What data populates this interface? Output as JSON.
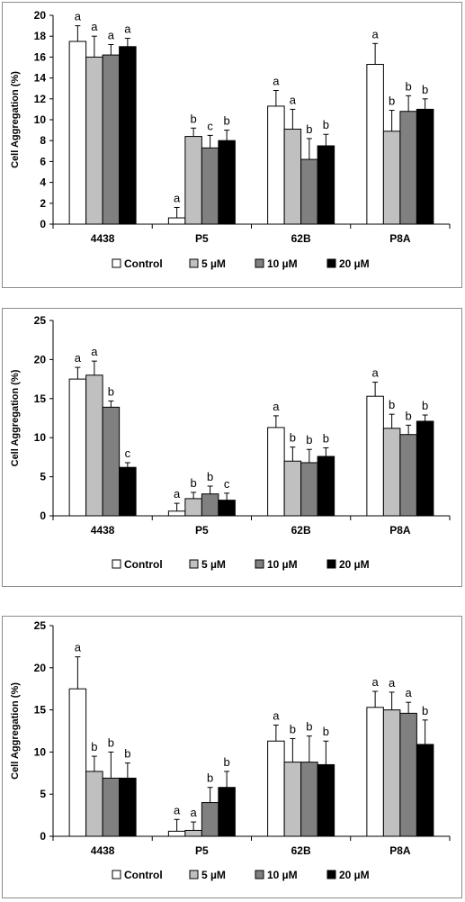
{
  "chart_data": [
    {
      "type": "bar",
      "categories": [
        "4438",
        "P5",
        "62B",
        "P8A"
      ],
      "ylabel": "Cell Aggregation (%)",
      "ylim": [
        0,
        20
      ],
      "yticks": [
        0,
        2,
        4,
        6,
        8,
        10,
        12,
        14,
        16,
        18,
        20
      ],
      "legend_position": "bottom",
      "series": [
        {
          "name": "Control",
          "color": "#ffffff",
          "values": [
            17.5,
            0.6,
            11.3,
            15.3
          ],
          "errors": [
            1.5,
            1.0,
            1.5,
            2.0
          ],
          "letters": [
            "a",
            "a",
            "a",
            "a"
          ]
        },
        {
          "name": "5 µM",
          "color": "#c0c0c0",
          "values": [
            16.0,
            8.4,
            9.1,
            8.9
          ],
          "errors": [
            2.0,
            0.8,
            1.9,
            2.0
          ],
          "letters": [
            "a",
            "b",
            "a",
            "b"
          ]
        },
        {
          "name": "10 µM",
          "color": "#808080",
          "values": [
            16.2,
            7.3,
            6.2,
            10.8
          ],
          "errors": [
            1.0,
            1.2,
            2.0,
            1.5
          ],
          "letters": [
            "a",
            "c",
            "b",
            "b"
          ]
        },
        {
          "name": "20 µM",
          "color": "#000000",
          "values": [
            17.0,
            8.0,
            7.5,
            11.0
          ],
          "errors": [
            0.8,
            1.0,
            1.1,
            1.0
          ],
          "letters": [
            "a",
            "b",
            "b",
            "b"
          ]
        }
      ]
    },
    {
      "type": "bar",
      "categories": [
        "4438",
        "P5",
        "62B",
        "P8A"
      ],
      "ylabel": "Cell Aggregation (%)",
      "ylim": [
        0,
        25
      ],
      "yticks": [
        0,
        5,
        10,
        15,
        20,
        25
      ],
      "legend_position": "bottom",
      "series": [
        {
          "name": "Control",
          "color": "#ffffff",
          "values": [
            17.5,
            0.6,
            11.3,
            15.3
          ],
          "errors": [
            1.5,
            1.0,
            1.5,
            1.8
          ],
          "letters": [
            "a",
            "a",
            "a",
            "a"
          ]
        },
        {
          "name": "5 µM",
          "color": "#c0c0c0",
          "values": [
            18.0,
            2.2,
            7.0,
            11.2
          ],
          "errors": [
            1.8,
            0.8,
            1.8,
            1.8
          ],
          "letters": [
            "a",
            "b",
            "b",
            "b"
          ]
        },
        {
          "name": "10 µM",
          "color": "#808080",
          "values": [
            13.9,
            2.8,
            6.8,
            10.4
          ],
          "errors": [
            0.8,
            1.0,
            1.7,
            1.2
          ],
          "letters": [
            "b",
            "b",
            "b",
            "b"
          ]
        },
        {
          "name": "20 µM",
          "color": "#000000",
          "values": [
            6.2,
            2.0,
            7.6,
            12.1
          ],
          "errors": [
            0.6,
            0.9,
            1.1,
            0.8
          ],
          "letters": [
            "c",
            "c",
            "b",
            "b"
          ]
        }
      ]
    },
    {
      "type": "bar",
      "categories": [
        "4438",
        "P5",
        "62B",
        "P8A"
      ],
      "ylabel": "Cell Aggregation (%)",
      "ylim": [
        0,
        25
      ],
      "yticks": [
        0,
        5,
        10,
        15,
        20,
        25
      ],
      "legend_position": "bottom",
      "series": [
        {
          "name": "Control",
          "color": "#ffffff",
          "values": [
            17.5,
            0.6,
            11.3,
            15.3
          ],
          "errors": [
            3.8,
            1.4,
            1.9,
            1.9
          ],
          "letters": [
            "a",
            "a",
            "a",
            "a"
          ]
        },
        {
          "name": "5 µM",
          "color": "#c0c0c0",
          "values": [
            7.7,
            0.7,
            8.8,
            15.0
          ],
          "errors": [
            1.8,
            1.0,
            2.8,
            2.1
          ],
          "letters": [
            "b",
            "a",
            "b",
            "a"
          ]
        },
        {
          "name": "10 µM",
          "color": "#808080",
          "values": [
            6.9,
            4.0,
            8.8,
            14.6
          ],
          "errors": [
            3.1,
            1.8,
            3.1,
            1.3
          ],
          "letters": [
            "b",
            "b",
            "b",
            "a"
          ]
        },
        {
          "name": "20 µM",
          "color": "#000000",
          "values": [
            6.9,
            5.8,
            8.5,
            10.9
          ],
          "errors": [
            1.8,
            1.9,
            2.8,
            2.9
          ],
          "letters": [
            "b",
            "b",
            "b",
            "b"
          ]
        }
      ]
    }
  ]
}
